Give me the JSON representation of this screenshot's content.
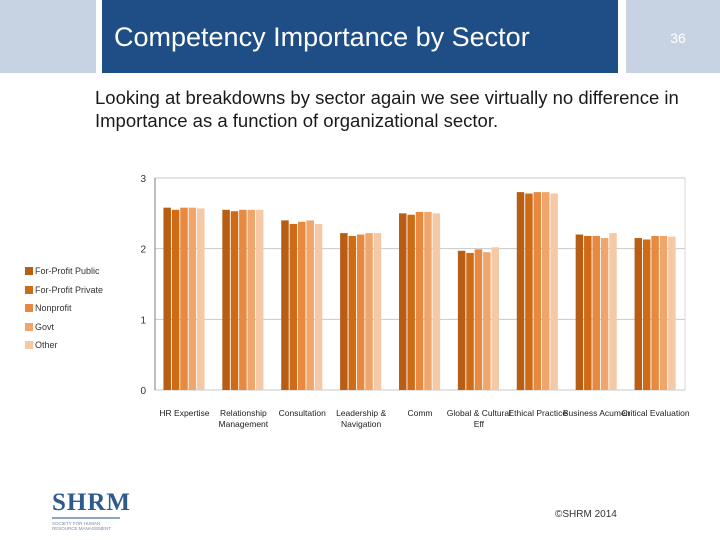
{
  "header": {
    "title": "Competency Importance by Sector",
    "slide_number": "36"
  },
  "subtitle": "Looking at breakdowns by sector again we see virtually no difference in Importance as a function of organizational sector.",
  "chart_data": {
    "type": "bar",
    "title": "",
    "xlabel": "",
    "ylabel": "",
    "ylim": [
      0,
      3
    ],
    "yticks": [
      "0",
      "1",
      "2",
      "3"
    ],
    "legend_position": "left",
    "categories": [
      "HR Expertise",
      "Relationship Management",
      "Consultation",
      "Leadership & Navigation",
      "Comm",
      "Global & Cultural Eff",
      "Ethical Practice",
      "Business Acumen",
      "Critical Evaluation"
    ],
    "series": [
      {
        "name": "For-Profit Public",
        "color": "#b85d14",
        "values": [
          2.58,
          2.55,
          2.4,
          2.22,
          2.5,
          1.97,
          2.8,
          2.2,
          2.15
        ]
      },
      {
        "name": "For-Profit Private",
        "color": "#cf6b14",
        "values": [
          2.55,
          2.53,
          2.35,
          2.18,
          2.48,
          1.94,
          2.78,
          2.18,
          2.13
        ]
      },
      {
        "name": "Nonprofit",
        "color": "#e7893e",
        "values": [
          2.58,
          2.55,
          2.38,
          2.2,
          2.52,
          1.99,
          2.8,
          2.18,
          2.18
        ]
      },
      {
        "name": "Govt",
        "color": "#f0a66a",
        "values": [
          2.58,
          2.55,
          2.4,
          2.22,
          2.52,
          1.95,
          2.8,
          2.15,
          2.18
        ]
      },
      {
        "name": "Other",
        "color": "#f5c9a5",
        "values": [
          2.57,
          2.55,
          2.35,
          2.22,
          2.5,
          2.02,
          2.78,
          2.22,
          2.17
        ]
      }
    ]
  },
  "logo": {
    "name": "SHRM",
    "tagline": "SOCIETY FOR HUMAN RESOURCE MANAGEMENT"
  },
  "footer": {
    "copyright": "©SHRM 2014"
  }
}
